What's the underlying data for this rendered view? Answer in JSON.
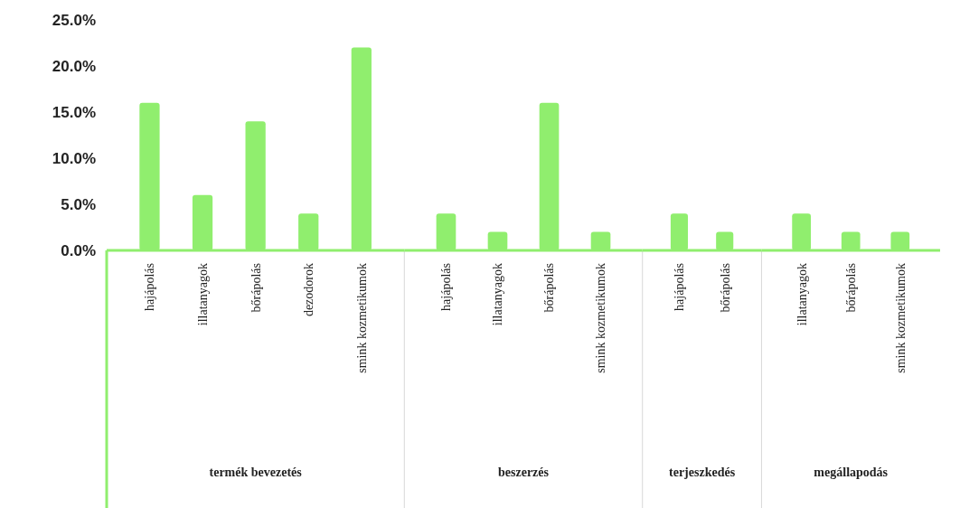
{
  "chart_data": [
    {
      "type": "bar",
      "categories": [
        "hajápolás",
        "illatanyagok",
        "bőrápolás",
        "dezodorok",
        "smink kozmetikumok"
      ],
      "values": [
        16,
        6,
        14,
        4,
        22
      ],
      "color": "#90ee6e",
      "xlabel": "termék bevezetés",
      "ylim": [
        0,
        25
      ],
      "yticks": [
        {
          "value": 0,
          "label": "0.0%"
        },
        {
          "value": 5,
          "label": "5.0%"
        },
        {
          "value": 10,
          "label": "10.0%"
        },
        {
          "value": 15,
          "label": "15.0%"
        },
        {
          "value": 20,
          "label": "20.0%"
        },
        {
          "value": 25,
          "label": "25.0%"
        }
      ]
    },
    {
      "type": "bar",
      "categories": [
        "hajápolás",
        "illatanyagok",
        "bőrápolás",
        "smink kozmetikumok"
      ],
      "values": [
        4,
        2,
        16,
        2
      ],
      "color": "#90ee6e",
      "xlabel": "beszerzés",
      "ylim": [
        0,
        25
      ],
      "tick_labels": "x"
    },
    {
      "type": "bar",
      "categories": [
        "hajápolás",
        "bőrápolás"
      ],
      "values": [
        4,
        2
      ],
      "color": "#90ee6e",
      "xlabel": "terjeszkedés",
      "ylim": [
        0,
        25
      ],
      "tick_labels": "x"
    },
    {
      "type": "bar",
      "categories": [
        "illatanyagok",
        "bőrápolás",
        "smink kozmetikumok"
      ],
      "values": [
        4,
        2,
        2
      ],
      "color": "#90ee6e",
      "xlabel": "megállapodás",
      "ylim": [
        0,
        25
      ],
      "tick_labels": "x"
    }
  ]
}
